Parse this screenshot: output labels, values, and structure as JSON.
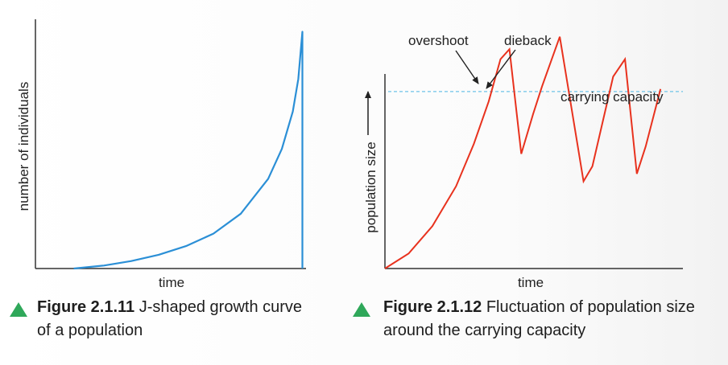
{
  "chart_data": [
    {
      "type": "line",
      "title": "",
      "xlabel": "time",
      "ylabel": "number of individuals",
      "xlim": [
        0,
        10
      ],
      "ylim": [
        0,
        10
      ],
      "grid": false,
      "series": [
        {
          "color": "#2b8fd6",
          "x": [
            1.4,
            2.5,
            3.5,
            4.5,
            5.5,
            6.5,
            7.5,
            8.5,
            9.0,
            9.4,
            9.6,
            9.75,
            9.75
          ],
          "y": [
            0.0,
            0.12,
            0.3,
            0.55,
            0.9,
            1.4,
            2.2,
            3.6,
            4.8,
            6.3,
            7.6,
            9.5,
            0.0
          ]
        }
      ]
    },
    {
      "type": "line",
      "title": "",
      "xlabel": "time",
      "ylabel": "population size",
      "xlim": [
        0,
        10
      ],
      "ylim": [
        0,
        10
      ],
      "grid": false,
      "carrying_capacity": 7.1,
      "carrying_capacity_color": "#6ec3e8",
      "annotations": [
        "overshoot",
        "dieback",
        "carrying capacity"
      ],
      "series": [
        {
          "color": "#e8321e",
          "x": [
            0.0,
            0.8,
            1.6,
            2.4,
            3.0,
            3.5,
            3.9,
            4.2,
            4.6,
            5.0,
            5.3,
            5.9,
            6.7,
            7.0,
            7.7,
            8.1,
            8.5,
            8.8,
            9.3
          ],
          "y": [
            0.0,
            0.6,
            1.7,
            3.3,
            5.0,
            6.7,
            8.4,
            8.8,
            4.6,
            6.2,
            7.3,
            9.3,
            3.5,
            4.1,
            7.7,
            8.4,
            3.8,
            4.9,
            7.2
          ]
        }
      ]
    }
  ],
  "figures": [
    {
      "number": "Figure 2.1.11",
      "caption": " J-shaped growth curve of a population"
    },
    {
      "number": "Figure 2.1.12",
      "caption": " Fluctuation of population size around the carrying capacity"
    }
  ]
}
